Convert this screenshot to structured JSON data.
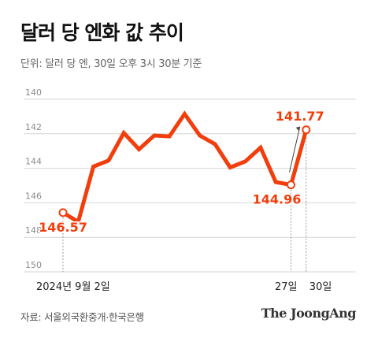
{
  "header": {
    "title": "달러 당 엔화 값 추이",
    "subtitle": "단위: 달러 당 엔, 30일 오후 3시 30분 기준"
  },
  "footer": {
    "source": "자료: 서울외국환중개·한국은행",
    "brand": "The JoongAng"
  },
  "colors": {
    "series": "#f23d0c",
    "grid": "#d6d6d6",
    "axis_text": "#8a8a8a"
  },
  "chart_data": {
    "type": "line",
    "title": "달러 당 엔화 값 추이",
    "ylabel": "",
    "xlabel": "",
    "ylim": [
      150,
      140
    ],
    "y_inverted": true,
    "y_ticks": [
      140,
      142,
      144,
      146,
      148,
      150
    ],
    "x_tick_labels": [
      "2024년 9월 2일",
      "27일",
      "30일"
    ],
    "series": [
      {
        "values": [
          146.57,
          147.1,
          143.9,
          143.55,
          141.95,
          142.9,
          142.1,
          142.15,
          140.85,
          142.1,
          142.6,
          143.95,
          143.6,
          142.8,
          144.8,
          144.96,
          141.77
        ]
      }
    ],
    "data_labels": [
      {
        "index": 0,
        "text": "146.57"
      },
      {
        "index": 15,
        "text": "144.96"
      },
      {
        "index": 16,
        "text": "141.77"
      }
    ],
    "grid": true,
    "legend": "none"
  }
}
